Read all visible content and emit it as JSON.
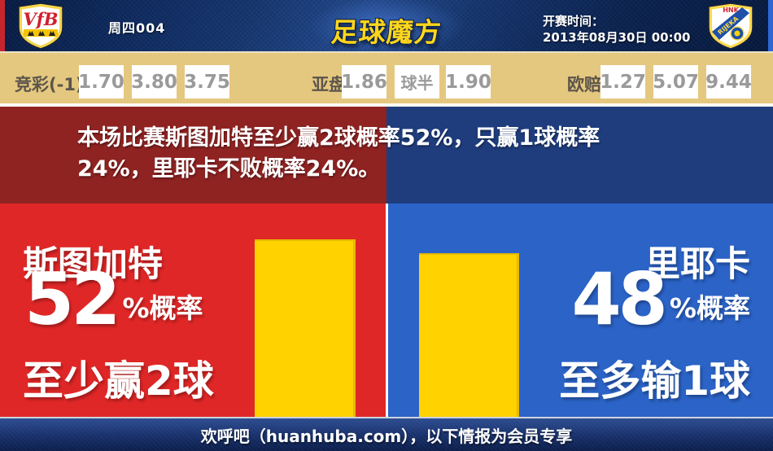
{
  "header": {
    "match_code": "周四004",
    "site_logo": "足球魔方",
    "kickoff_label": "开赛时间：",
    "kickoff_time": "2013年08月30日 00:00",
    "home_crest": "vfb-stuttgart-crest",
    "away_crest": "hnk-rijeka-crest",
    "away_crest_top_text": "HNK",
    "away_crest_band_text": "RIJEKA",
    "home_crest_text": "VfB"
  },
  "odds_bar": {
    "jingcai": {
      "label": "竞彩(-1)",
      "values": [
        "1.70",
        "3.80",
        "3.75"
      ]
    },
    "yapan": {
      "label": "亚盘",
      "values": [
        "1.86",
        "球半",
        "1.90"
      ]
    },
    "oupei": {
      "label": "欧赔",
      "values": [
        "1.27",
        "5.07",
        "9.44"
      ]
    }
  },
  "message": {
    "line1": "本场比赛斯图加特至少赢2球概率52%，只赢1球概率",
    "line2": "24%，里耶卡不败概率24%。"
  },
  "prediction": {
    "home": {
      "team": "斯图加特",
      "percent": "52",
      "percent_suffix": "%概率",
      "outcome": "至少赢2球",
      "bar_value": 52
    },
    "away": {
      "team": "里耶卡",
      "percent": "48",
      "percent_suffix": "%概率",
      "outcome": "至多输1球",
      "bar_value": 48
    }
  },
  "chart_data": {
    "type": "bar",
    "categories": [
      "斯图加特 至少赢2球",
      "里耶卡 至多输1球"
    ],
    "values": [
      52,
      48
    ],
    "unit": "%概率"
  },
  "footer": {
    "text": "欢呼吧（huanhuba.com），以下情报为会员专享"
  },
  "colors": {
    "home_red": "#e02727",
    "away_blue": "#2b63c7",
    "bar_yellow": "#ffd200",
    "message_maroon": "#8e2322",
    "message_navy": "#1f3d7d",
    "odds_tan": "#e5c87f",
    "logo_gold": "#ffd61c"
  }
}
